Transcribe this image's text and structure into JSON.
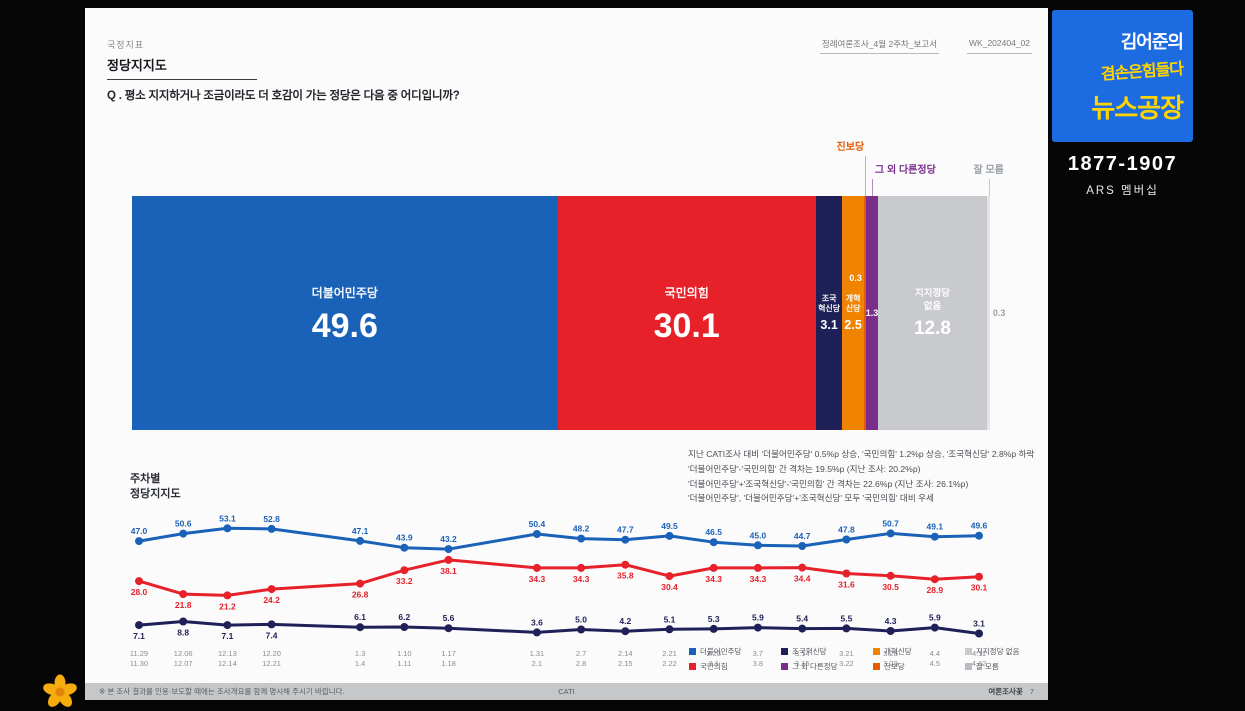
{
  "header": {
    "category": "국정지표",
    "title": "정당지지도",
    "question": "Q . 평소 지지하거나 조금이라도 더 호감이 가는 정당은 다음 중 어디입니까?",
    "doc_name": "정례여론조사_4월 2주차_보고서",
    "doc_code": "WK_202404_02"
  },
  "brand": {
    "logo_line1": "김어준의",
    "logo_line2": "겸손은힘들다",
    "logo_line3": "뉴스공장",
    "phone": "1877-1907",
    "ars_label": "ARS 멤버십",
    "logo_bg": "#1d6be0",
    "logo_accent": "#ffd400"
  },
  "annotation": {
    "lines": [
      "지난 CATI조사 대비 '더불어민주당' 0.5%p 상승, '국민의힘' 1.2%p 상승, '조국혁신당' 2.8%p 하락",
      "'더불어민주당'-'국민의힘' 간 격차는 19.5%p (지난 조사: 20.2%p)",
      "'더불어민주당'+'조국혁신당'-'국민의힘' 간 격차는 22.6%p (지난 조사: 26.1%p)",
      "'더불어민주당', '더불어민주당'+'조국혁신당' 모두 '국민의힘' 대비 우세"
    ]
  },
  "weekly": {
    "label_line1": "주차별",
    "label_line2": "정당지지도"
  },
  "footer": {
    "left": "※ 본 조사 결과를 인용·보도할 때에는 조사개요를 함께 명시해 주시기 바랍니다.",
    "center": "CATI",
    "brand": "여론조사꽃",
    "page": "7"
  },
  "chart_data": [
    {
      "type": "bar",
      "subtype": "horizontal-stacked-100",
      "title": "정당지지도",
      "unit": "%",
      "segments": [
        {
          "label": "더불어민주당",
          "value": 49.6,
          "color": "#1A62B7"
        },
        {
          "label": "국민의힘",
          "value": 30.1,
          "color": "#E6212A"
        },
        {
          "label": "조국혁신당",
          "label_lines": [
            "조국",
            "혁신당"
          ],
          "value": 3.1,
          "color": "#1F2057"
        },
        {
          "label": "개혁신당",
          "label_lines": [
            "개혁",
            "신당"
          ],
          "value": 2.5,
          "color": "#F08300"
        },
        {
          "label": "진보당",
          "value": 0.3,
          "color": "#E55B00",
          "thin_label": "left-high",
          "callout": "high",
          "callout_align": "right"
        },
        {
          "label": "그 외 다른정당",
          "value": 1.3,
          "color": "#7B2D8B",
          "thin_label": "center",
          "callout": "low",
          "callout_align": "left"
        },
        {
          "label": "지지정당 없음",
          "label_lines": [
            "지지정당",
            "없음"
          ],
          "value": 12.8,
          "color": "#C9CACD"
        },
        {
          "label": "잘 모름",
          "value": 0.3,
          "color": "#E4E5E8",
          "thin_label": "right-out",
          "thin_color": "#9BA1A8",
          "callout": "low",
          "callout_align": "center",
          "callout_color": "#9BA1A8"
        }
      ]
    },
    {
      "type": "line",
      "title": "주차별 정당지지도",
      "ylim": [
        0,
        58
      ],
      "total_slots": 20,
      "slots": [
        0,
        1,
        2,
        3,
        5,
        6,
        7,
        9,
        10,
        11,
        12,
        13,
        14,
        15,
        16,
        17,
        18,
        19
      ],
      "x_labels": [
        [
          "11.29",
          "11.30"
        ],
        [
          "12.06",
          "12.07"
        ],
        [
          "12.13",
          "12.14"
        ],
        [
          "12.20",
          "12.21"
        ],
        [
          "1.3",
          "1.4"
        ],
        [
          "1.10",
          "1.11"
        ],
        [
          "1.17",
          "1.18"
        ],
        [
          "1.31",
          "2.1"
        ],
        [
          "2.7",
          "2.8"
        ],
        [
          "2.14",
          "2.15"
        ],
        [
          "2.21",
          "2.22"
        ],
        [
          "2.28",
          "3.1"
        ],
        [
          "3.7",
          "3.8"
        ],
        [
          "3.14",
          "3.15"
        ],
        [
          "3.21",
          "3.22"
        ],
        [
          "3.28",
          "3.29"
        ],
        [
          "4.4",
          "4.5"
        ],
        [
          "4.11",
          "4.12"
        ]
      ],
      "series": [
        {
          "name": "더불어민주당",
          "color": "#1A62B7",
          "label_side": "above",
          "values": [
            47.0,
            50.6,
            53.1,
            52.8,
            47.1,
            43.9,
            43.2,
            50.4,
            48.2,
            47.7,
            49.5,
            46.5,
            45.0,
            44.7,
            47.8,
            50.7,
            49.1,
            49.6
          ]
        },
        {
          "name": "국민의힘",
          "color": "#E6212A",
          "label_side": "below",
          "values": [
            28.0,
            21.8,
            21.2,
            24.2,
            26.8,
            33.2,
            38.1,
            34.3,
            34.3,
            35.8,
            30.4,
            34.3,
            34.3,
            34.4,
            31.6,
            30.5,
            28.9,
            30.1
          ]
        },
        {
          "name": "조국혁신당",
          "color": "#1F2057",
          "label_side": "auto",
          "values": [
            7.1,
            8.8,
            7.1,
            7.4,
            6.1,
            6.2,
            5.6,
            3.6,
            5.0,
            4.2,
            5.1,
            5.3,
            5.9,
            5.4,
            5.5,
            4.3,
            5.9,
            3.1
          ]
        }
      ],
      "legend_items": [
        {
          "label": "더불어민주당",
          "color": "#1A62B7"
        },
        {
          "label": "조국혁신당",
          "color": "#1F2057"
        },
        {
          "label": "개혁신당",
          "color": "#F08300"
        },
        {
          "label": "지지정당 없음",
          "color": "#C9CACD"
        },
        {
          "label": "국민의힘",
          "color": "#E6212A"
        },
        {
          "label": "그 외 다른정당",
          "color": "#7B2D8B"
        },
        {
          "label": "진보당",
          "color": "#E55B00"
        },
        {
          "label": "잘 모름",
          "color": "#B9BDC3"
        }
      ]
    }
  ]
}
